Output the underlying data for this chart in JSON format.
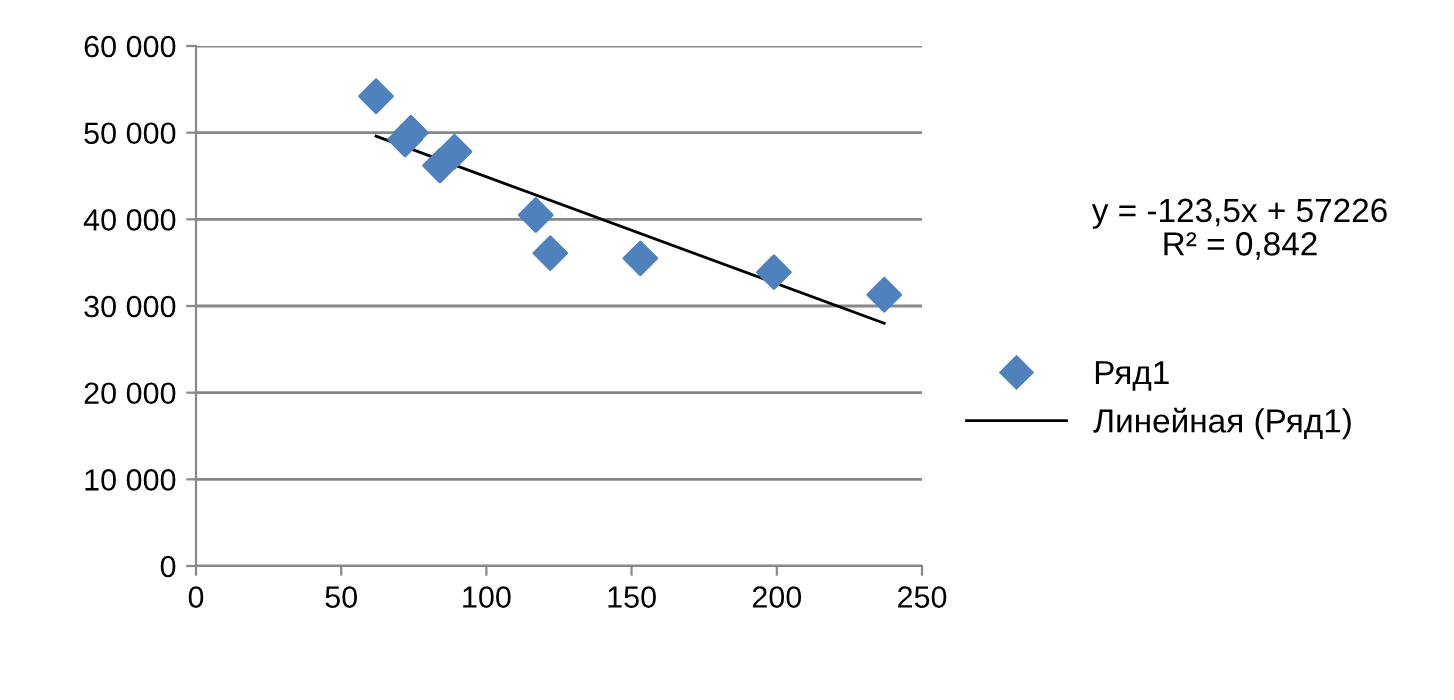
{
  "chart_data": {
    "type": "scatter",
    "xlim": [
      0,
      250
    ],
    "xticks": [
      0,
      50,
      100,
      150,
      200,
      250
    ],
    "ylim": [
      0,
      60000
    ],
    "yticks": [
      {
        "value": 0,
        "label": "0"
      },
      {
        "value": 10000,
        "label": "10 000"
      },
      {
        "value": 20000,
        "label": "20 000"
      },
      {
        "value": 30000,
        "label": "30 000"
      },
      {
        "value": 40000,
        "label": "40 000"
      },
      {
        "value": 50000,
        "label": "50 000"
      },
      {
        "value": 60000,
        "label": "60 000"
      }
    ],
    "grid": "y",
    "legend": "right",
    "annotations": [
      "y = -123,5x + 57226\nR² = 0,842"
    ],
    "series": [
      {
        "name": "Ряд1",
        "marker": "diamond",
        "color": "#4f81bd",
        "x": [
          62,
          72,
          74,
          84,
          89,
          117,
          122,
          153,
          199,
          237
        ],
        "values": [
          54200,
          49200,
          50000,
          46200,
          47800,
          40500,
          36100,
          35500,
          33900,
          31300
        ]
      },
      {
        "name": "Линейная (Ряд1)",
        "type": "line",
        "marker": "none",
        "line_style": "solid",
        "color": "#000000",
        "x": [
          62,
          237
        ],
        "values": [
          49600,
          28000
        ]
      }
    ]
  }
}
